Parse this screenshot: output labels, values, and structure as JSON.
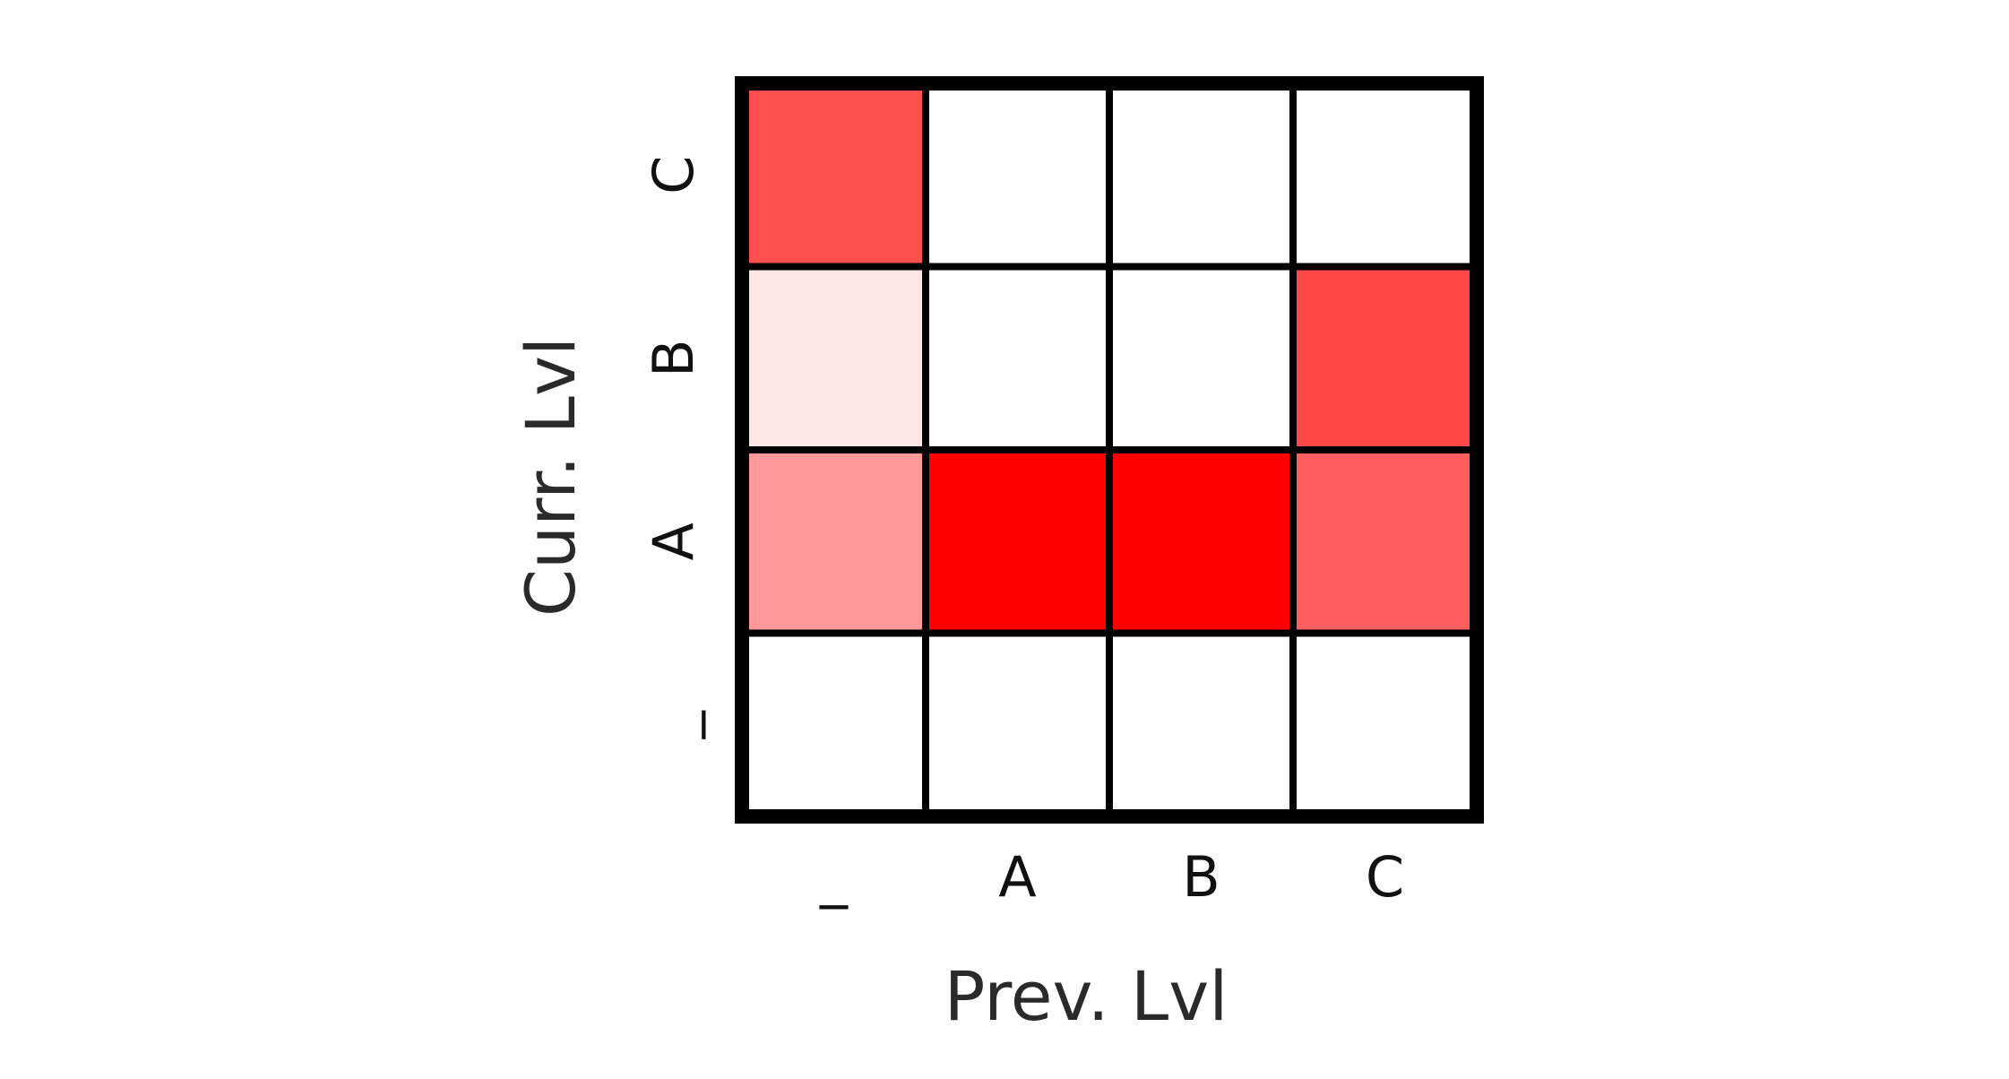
{
  "chart_data": {
    "type": "heatmap",
    "xlabel": "Prev. Lvl",
    "ylabel": "Curr. Lvl",
    "x_categories": [
      "_",
      "A",
      "B",
      "C"
    ],
    "y_categories": [
      "_",
      "A",
      "B",
      "C"
    ],
    "values": [
      [
        0.0,
        0.0,
        0.0,
        0.0
      ],
      [
        0.4,
        1.0,
        1.0,
        0.63
      ],
      [
        0.1,
        0.0,
        0.0,
        0.72
      ],
      [
        0.69,
        0.0,
        0.0,
        0.0
      ]
    ],
    "colormap": {
      "low": "#ffffff",
      "high": "#ff0000"
    },
    "grid": true,
    "legend": "none"
  }
}
